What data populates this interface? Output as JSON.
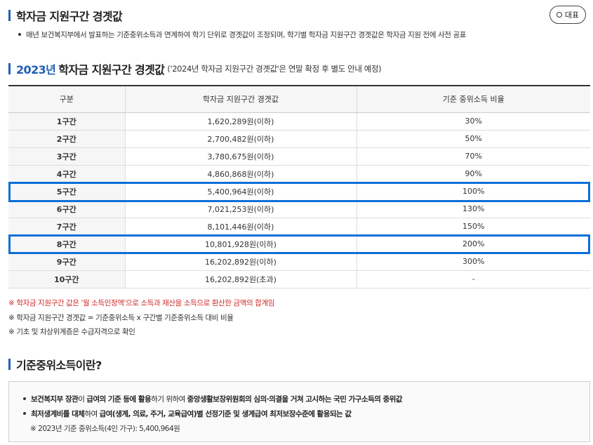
{
  "header": {
    "title": "학자금 지원구간 경곗값",
    "badge_label": "대표",
    "note": "매년 보건복지부에서 발표하는 기준중위소득과 연계하여 학기 단위로 경곗값이 조정되며, 학기별 학자금 지원구간 경곗값은 학자금 지원 전에 사전 공표"
  },
  "table_section": {
    "year": "2023년",
    "title": "학자금 지원구간 경곗값",
    "subtitle": "('2024년 학자금 지원구간 경곗값'은 연말 확정 후 별도 안내 예정)"
  },
  "table": {
    "headers": [
      "구분",
      "학자금 지원구간 경곗값",
      "기준 중위소득 비율"
    ],
    "rows": [
      [
        "1구간",
        "1,620,289원(이하)",
        "30%"
      ],
      [
        "2구간",
        "2,700,482원(이하)",
        "50%"
      ],
      [
        "3구간",
        "3,780,675원(이하)",
        "70%"
      ],
      [
        "4구간",
        "4,860,868원(이하)",
        "90%"
      ],
      [
        "5구간",
        "5,400,964원(이하)",
        "100%"
      ],
      [
        "6구간",
        "7,021,253원(이하)",
        "130%"
      ],
      [
        "7구간",
        "8,101,446원(이하)",
        "150%"
      ],
      [
        "8구간",
        "10,801,928원(이하)",
        "200%"
      ],
      [
        "9구간",
        "16,202,892원(이하)",
        "300%"
      ],
      [
        "10구간",
        "16,202,892원(초과)",
        "-"
      ]
    ]
  },
  "footnotes": {
    "f1": "※ 학자금 지원구간 값은 '월 소득인정액'으로 소득과 재산을 소득으로 환산한 금액의 합계임",
    "f2": "※ 학자금 지원구간 경곗값 = 기준중위소득 x 구간별 기준중위소득 대비 비율",
    "f3": "※ 기초 및 차상위계층은 수급자격으로 확인"
  },
  "median_section": {
    "title": "기준중위소득이란?",
    "line1_a": "보건복지부 장관",
    "line1_b": "이 ",
    "line1_c": "급여의 기준 등에 활용",
    "line1_d": "하기 위하여 ",
    "line1_e": "중앙생활보장위원회의 심의·의결을 거쳐 고시하는 국민 가구소득의 중위값",
    "line2_a": "최저생계비를 대체",
    "line2_b": "하여 ",
    "line2_c": "급여(생계, 의료, 주거, 교육급여)별 선정기준 및 생계급여 최저보장수준에 활용되는 값",
    "line3": "※ 2023년 기준 중위소득(4인 가구): 5,400,964원"
  },
  "colors": {
    "accent": "#1f5fb4",
    "highlight": "#0a6fd8",
    "warning_red": "#d02b2b"
  }
}
